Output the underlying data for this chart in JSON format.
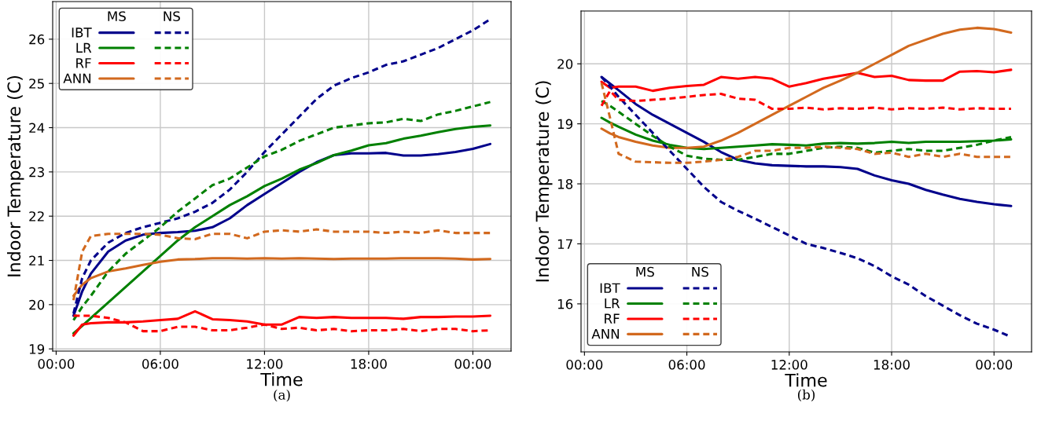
{
  "chart_data": [
    {
      "type": "line",
      "xlabel": "Time",
      "ylabel": "Indoor Temperature (C)",
      "annotations": [
        "MS",
        "NS",
        "(a)"
      ],
      "x": [
        1,
        1.5,
        2,
        3,
        4,
        5,
        6,
        7,
        8,
        9,
        10,
        11,
        12,
        13,
        14,
        15,
        16,
        17,
        18,
        19,
        20,
        21,
        22,
        23,
        24,
        25
      ],
      "xlim": [
        -0.2,
        26.2
      ],
      "xticks": [
        {
          "value": 0,
          "label": "00:00"
        },
        {
          "value": 6,
          "label": "06:00"
        },
        {
          "value": 12,
          "label": "12:00"
        },
        {
          "value": 18,
          "label": "18:00"
        },
        {
          "value": 24,
          "label": "00:00"
        }
      ],
      "ylim": [
        18.95,
        26.85
      ],
      "yticks": [
        19,
        20,
        21,
        22,
        23,
        24,
        25,
        26
      ],
      "grid": true,
      "legend": "top left",
      "series": [
        {
          "name": "IBT",
          "color": "#00008b",
          "line_style": "solid",
          "values": [
            19.75,
            20.3,
            20.7,
            21.2,
            21.45,
            21.58,
            21.62,
            21.64,
            21.67,
            21.75,
            21.95,
            22.25,
            22.5,
            22.75,
            23.0,
            23.22,
            23.38,
            23.42,
            23.42,
            23.43,
            23.37,
            23.37,
            23.4,
            23.45,
            23.52,
            23.63
          ]
        },
        {
          "name": "LR",
          "color": "#008000",
          "line_style": "solid",
          "values": [
            19.35,
            19.52,
            19.7,
            20.05,
            20.4,
            20.75,
            21.1,
            21.45,
            21.75,
            22.0,
            22.25,
            22.45,
            22.68,
            22.85,
            23.05,
            23.2,
            23.38,
            23.48,
            23.6,
            23.65,
            23.75,
            23.82,
            23.9,
            23.97,
            24.02,
            24.05
          ]
        },
        {
          "name": "RF",
          "color": "#ff0000",
          "line_style": "solid",
          "values": [
            19.3,
            19.55,
            19.58,
            19.6,
            19.6,
            19.62,
            19.65,
            19.68,
            19.85,
            19.67,
            19.65,
            19.62,
            19.55,
            19.55,
            19.72,
            19.7,
            19.72,
            19.7,
            19.7,
            19.7,
            19.68,
            19.72,
            19.72,
            19.73,
            19.73,
            19.75
          ]
        },
        {
          "name": "ANN",
          "color": "#d2691e",
          "line_style": "solid",
          "values": [
            20.2,
            20.45,
            20.6,
            20.75,
            20.82,
            20.9,
            20.97,
            21.02,
            21.03,
            21.05,
            21.05,
            21.04,
            21.05,
            21.04,
            21.05,
            21.04,
            21.03,
            21.04,
            21.04,
            21.04,
            21.05,
            21.05,
            21.05,
            21.04,
            21.02,
            21.03
          ]
        },
        {
          "color": "#00008b",
          "line_style": "dashed",
          "values": [
            19.8,
            20.6,
            21.0,
            21.4,
            21.62,
            21.75,
            21.85,
            21.95,
            22.1,
            22.3,
            22.6,
            23.0,
            23.45,
            23.85,
            24.25,
            24.65,
            24.95,
            25.12,
            25.25,
            25.42,
            25.5,
            25.65,
            25.8,
            26.0,
            26.2,
            26.45
          ]
        },
        {
          "color": "#008000",
          "line_style": "dashed",
          "values": [
            19.65,
            19.95,
            20.2,
            20.75,
            21.15,
            21.45,
            21.75,
            22.1,
            22.4,
            22.7,
            22.85,
            23.1,
            23.35,
            23.5,
            23.7,
            23.85,
            24.0,
            24.05,
            24.1,
            24.12,
            24.2,
            24.15,
            24.3,
            24.38,
            24.48,
            24.58
          ]
        },
        {
          "color": "#ff0000",
          "line_style": "dashed",
          "values": [
            19.75,
            19.75,
            19.75,
            19.7,
            19.6,
            19.4,
            19.4,
            19.5,
            19.5,
            19.42,
            19.42,
            19.48,
            19.55,
            19.45,
            19.48,
            19.42,
            19.45,
            19.4,
            19.42,
            19.42,
            19.45,
            19.4,
            19.45,
            19.45,
            19.4,
            19.42
          ]
        },
        {
          "color": "#d2691e",
          "line_style": "dashed",
          "values": [
            20.1,
            21.2,
            21.55,
            21.6,
            21.6,
            21.6,
            21.58,
            21.5,
            21.48,
            21.6,
            21.6,
            21.5,
            21.65,
            21.68,
            21.65,
            21.7,
            21.65,
            21.65,
            21.65,
            21.62,
            21.65,
            21.62,
            21.68,
            21.62,
            21.62,
            21.62
          ]
        }
      ]
    },
    {
      "type": "line",
      "xlabel": "Time",
      "ylabel": "Indoor Temperature (C)",
      "annotations": [
        "MS",
        "NS",
        "(b)"
      ],
      "x": [
        1,
        1.5,
        2,
        3,
        4,
        5,
        6,
        7,
        8,
        9,
        10,
        11,
        12,
        13,
        14,
        15,
        16,
        17,
        18,
        19,
        20,
        21,
        22,
        23,
        24,
        25
      ],
      "xlim": [
        -0.2,
        26.2
      ],
      "xticks": [
        {
          "value": 0,
          "label": "00:00"
        },
        {
          "value": 6,
          "label": "06:00"
        },
        {
          "value": 12,
          "label": "12:00"
        },
        {
          "value": 18,
          "label": "18:00"
        },
        {
          "value": 24,
          "label": "00:00"
        }
      ],
      "ylim": [
        15.2,
        20.88
      ],
      "yticks": [
        16,
        17,
        18,
        19,
        20
      ],
      "grid": true,
      "legend": "bottom left",
      "series": [
        {
          "name": "IBT",
          "color": "#00008b",
          "line_style": "solid",
          "values": [
            19.78,
            19.67,
            19.56,
            19.33,
            19.15,
            19.0,
            18.85,
            18.7,
            18.53,
            18.4,
            18.34,
            18.31,
            18.3,
            18.29,
            18.29,
            18.28,
            18.25,
            18.14,
            18.06,
            18.0,
            17.9,
            17.82,
            17.75,
            17.7,
            17.66,
            17.63
          ]
        },
        {
          "name": "LR",
          "color": "#008000",
          "line_style": "solid",
          "values": [
            19.1,
            19.02,
            18.95,
            18.82,
            18.72,
            18.65,
            18.6,
            18.58,
            18.6,
            18.62,
            18.64,
            18.66,
            18.65,
            18.64,
            18.67,
            18.68,
            18.67,
            18.68,
            18.7,
            18.68,
            18.7,
            18.7,
            18.7,
            18.71,
            18.72,
            18.74
          ]
        },
        {
          "name": "RF",
          "color": "#ff0000",
          "line_style": "solid",
          "values": [
            19.7,
            19.6,
            19.62,
            19.62,
            19.55,
            19.6,
            19.63,
            19.65,
            19.78,
            19.75,
            19.78,
            19.75,
            19.62,
            19.68,
            19.75,
            19.8,
            19.85,
            19.78,
            19.8,
            19.73,
            19.72,
            19.72,
            19.87,
            19.88,
            19.86,
            19.9
          ]
        },
        {
          "name": "ANN",
          "color": "#d2691e",
          "line_style": "solid",
          "values": [
            18.92,
            18.84,
            18.78,
            18.7,
            18.64,
            18.6,
            18.6,
            18.62,
            18.72,
            18.85,
            19.0,
            19.15,
            19.3,
            19.45,
            19.6,
            19.72,
            19.85,
            20.0,
            20.15,
            20.3,
            20.4,
            20.5,
            20.57,
            20.6,
            20.58,
            20.52
          ]
        },
        {
          "color": "#00008b",
          "line_style": "dashed",
          "values": [
            19.78,
            19.62,
            19.45,
            19.15,
            18.85,
            18.55,
            18.25,
            17.95,
            17.7,
            17.55,
            17.42,
            17.28,
            17.14,
            17.0,
            16.93,
            16.85,
            16.76,
            16.63,
            16.46,
            16.32,
            16.13,
            15.97,
            15.81,
            15.67,
            15.57,
            15.45
          ]
        },
        {
          "color": "#008000",
          "line_style": "dashed",
          "values": [
            19.38,
            19.3,
            19.2,
            19.0,
            18.8,
            18.62,
            18.47,
            18.42,
            18.4,
            18.4,
            18.45,
            18.5,
            18.5,
            18.55,
            18.6,
            18.62,
            18.6,
            18.52,
            18.55,
            18.58,
            18.55,
            18.55,
            18.6,
            18.65,
            18.72,
            18.78
          ]
        },
        {
          "color": "#ff0000",
          "line_style": "dashed",
          "values": [
            19.3,
            19.55,
            19.4,
            19.38,
            19.4,
            19.42,
            19.45,
            19.48,
            19.5,
            19.42,
            19.4,
            19.25,
            19.25,
            19.27,
            19.24,
            19.26,
            19.25,
            19.27,
            19.24,
            19.26,
            19.25,
            19.27,
            19.24,
            19.26,
            19.25,
            19.25
          ]
        },
        {
          "color": "#d2691e",
          "line_style": "dashed",
          "values": [
            19.68,
            19.1,
            18.5,
            18.37,
            18.36,
            18.35,
            18.35,
            18.37,
            18.4,
            18.45,
            18.55,
            18.55,
            18.6,
            18.6,
            18.62,
            18.6,
            18.58,
            18.5,
            18.52,
            18.45,
            18.5,
            18.45,
            18.5,
            18.45,
            18.45,
            18.45
          ]
        }
      ]
    }
  ]
}
